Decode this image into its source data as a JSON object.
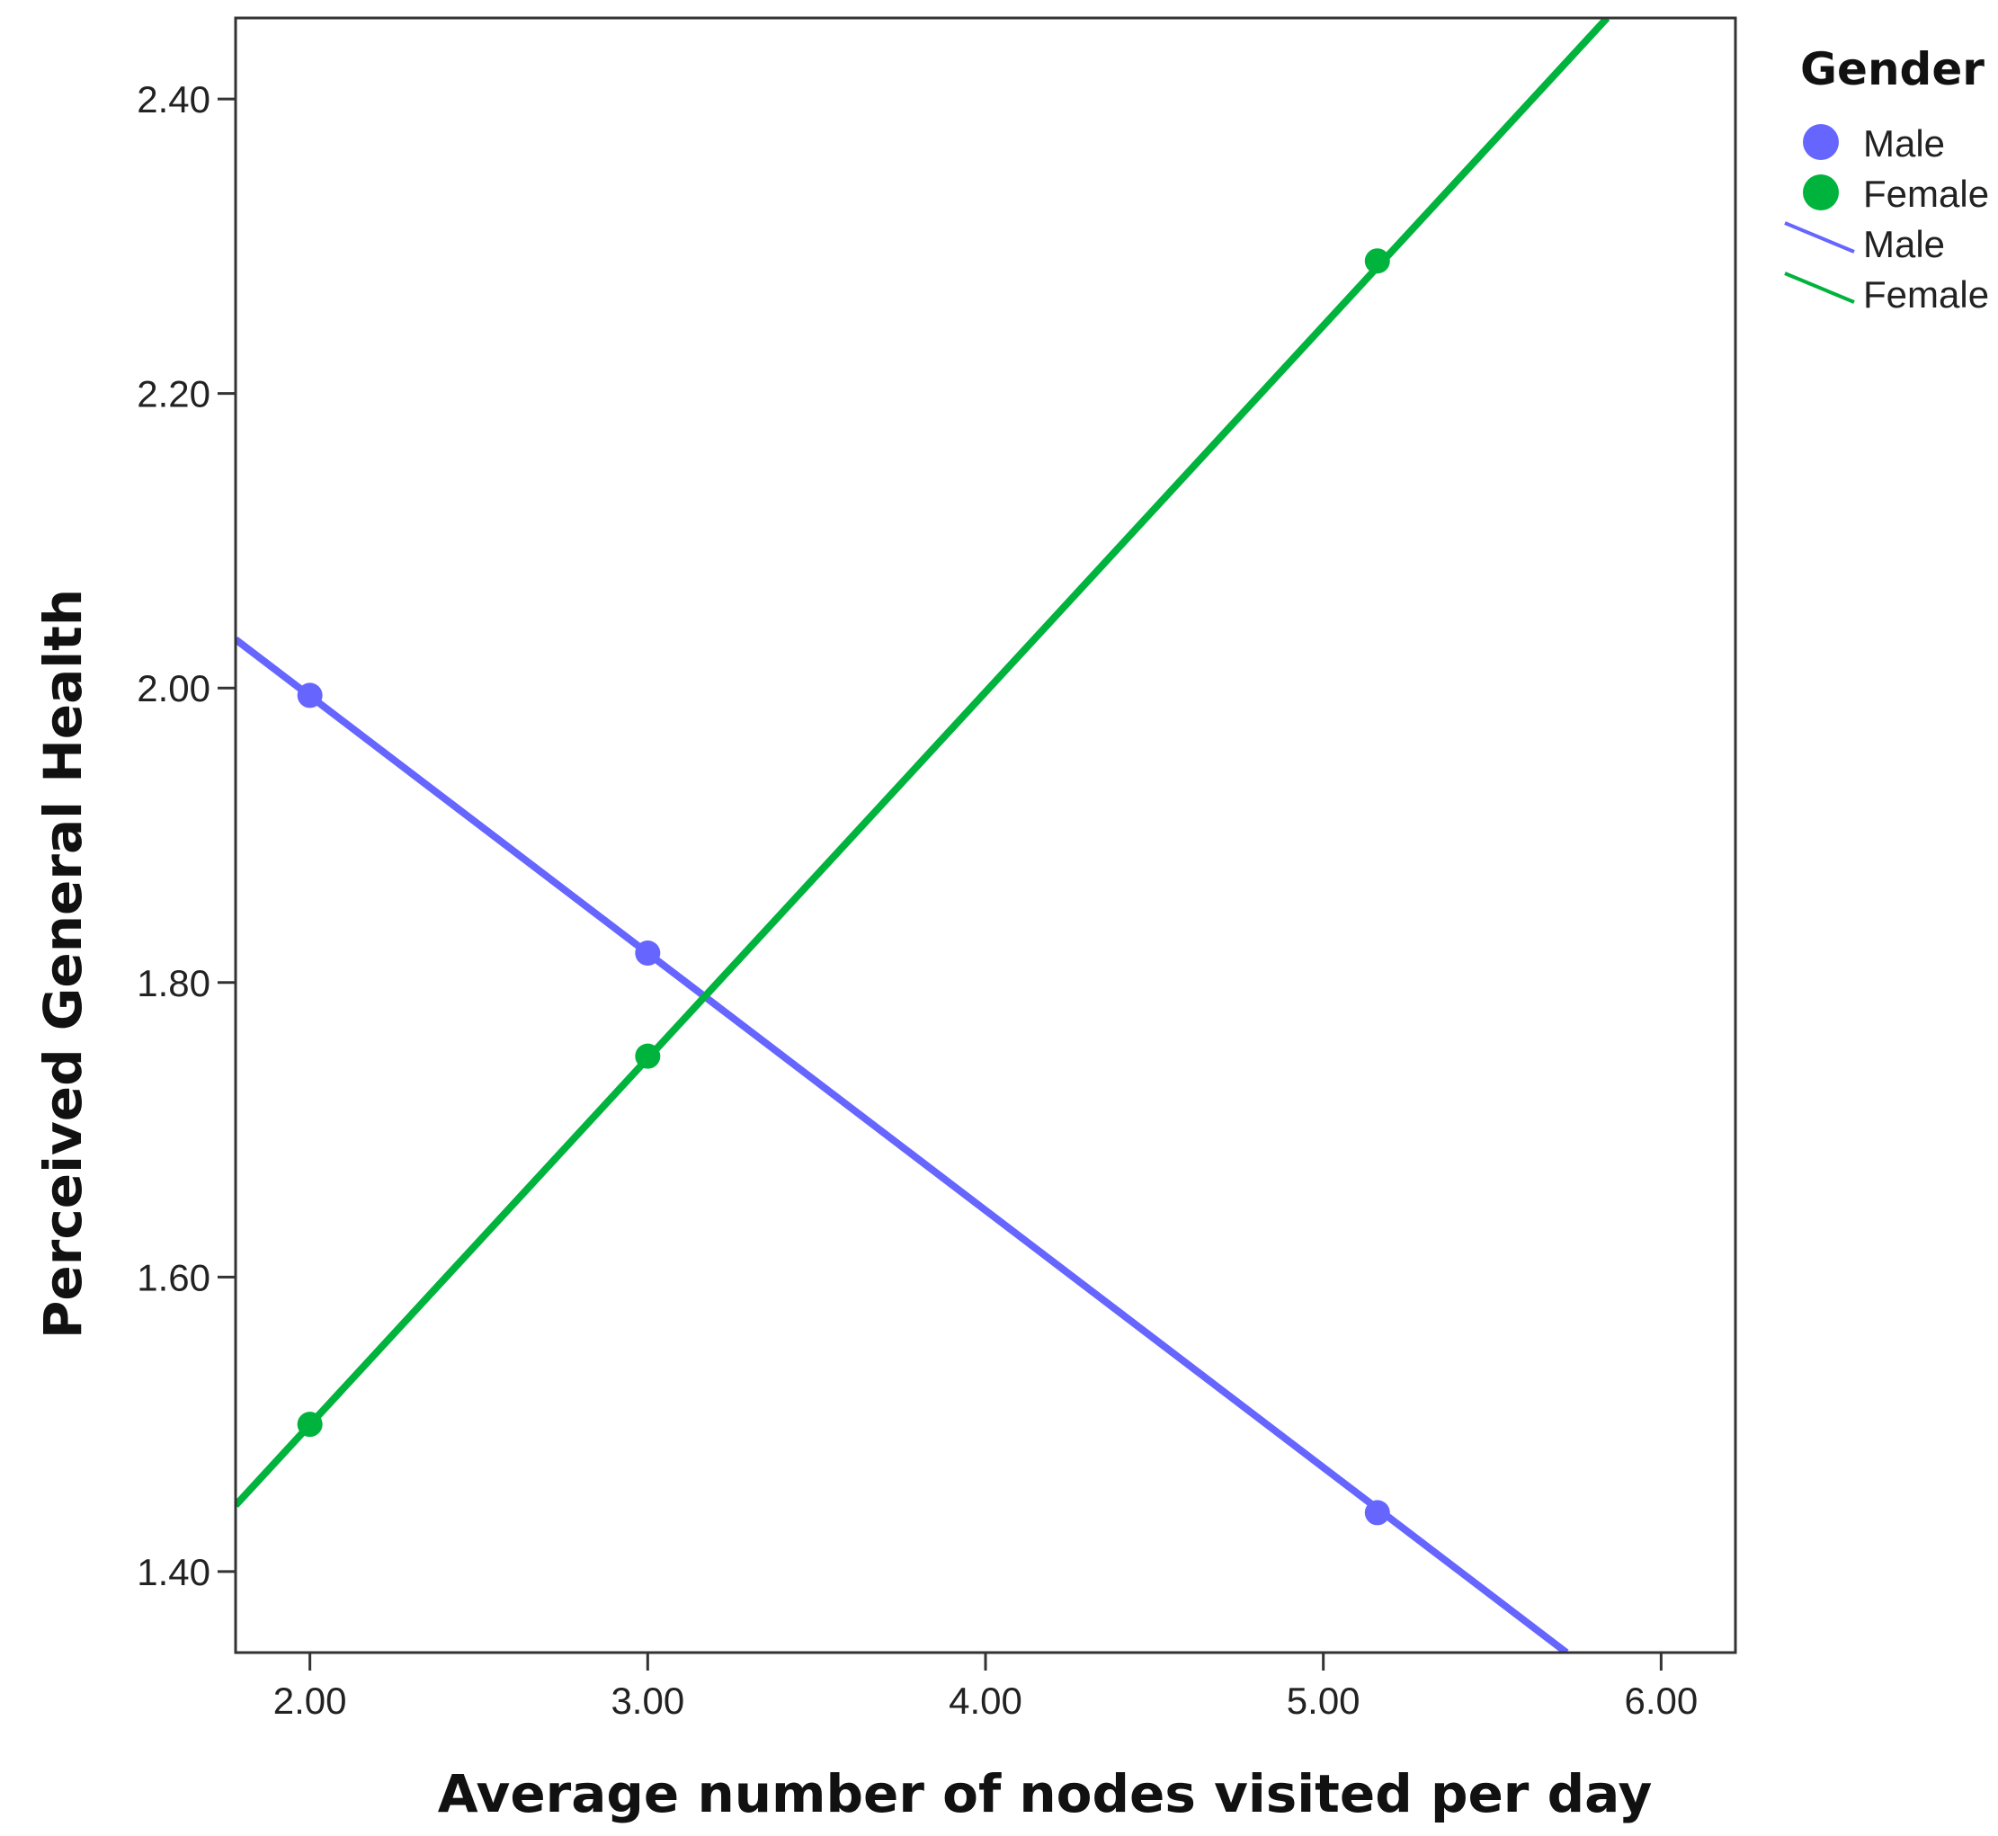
{
  "chart_data": {
    "type": "line",
    "xlabel": "Average number of nodes visited per day",
    "ylabel": "Perceived General Health",
    "xlim": [
      1.78,
      6.22
    ],
    "ylim": [
      1.345,
      2.455
    ],
    "x_ticks": [
      2.0,
      3.0,
      4.0,
      5.0,
      6.0
    ],
    "x_tick_labels": [
      "2.00",
      "3.00",
      "4.00",
      "5.00",
      "6.00"
    ],
    "y_ticks": [
      1.4,
      1.6,
      1.8,
      2.0,
      2.2,
      2.4
    ],
    "y_tick_labels": [
      "1.40",
      "1.60",
      "1.80",
      "2.00",
      "2.20",
      "2.40"
    ],
    "grid": false,
    "legend": {
      "title": "Gender",
      "placement": "right",
      "entries": [
        {
          "label": "Male",
          "kind": "marker",
          "color": "#6666ff"
        },
        {
          "label": "Female",
          "kind": "marker",
          "color": "#00b33c"
        },
        {
          "label": "Male",
          "kind": "line",
          "color": "#6666ff"
        },
        {
          "label": "Female",
          "kind": "line",
          "color": "#00b33c"
        }
      ]
    },
    "series": [
      {
        "name": "Male",
        "color": "#6666ff",
        "points": [
          {
            "x": 2.0,
            "y": 1.995
          },
          {
            "x": 3.0,
            "y": 1.82
          },
          {
            "x": 5.16,
            "y": 1.44
          }
        ],
        "fit_line": {
          "x": [
            1.78,
            5.72
          ],
          "y": [
            2.033,
            1.345
          ]
        }
      },
      {
        "name": "Female",
        "color": "#00b33c",
        "points": [
          {
            "x": 2.0,
            "y": 1.5
          },
          {
            "x": 3.0,
            "y": 1.75
          },
          {
            "x": 5.16,
            "y": 2.29
          }
        ],
        "fit_line": {
          "x": [
            1.78,
            5.84
          ],
          "y": [
            1.445,
            2.455
          ]
        }
      }
    ]
  }
}
